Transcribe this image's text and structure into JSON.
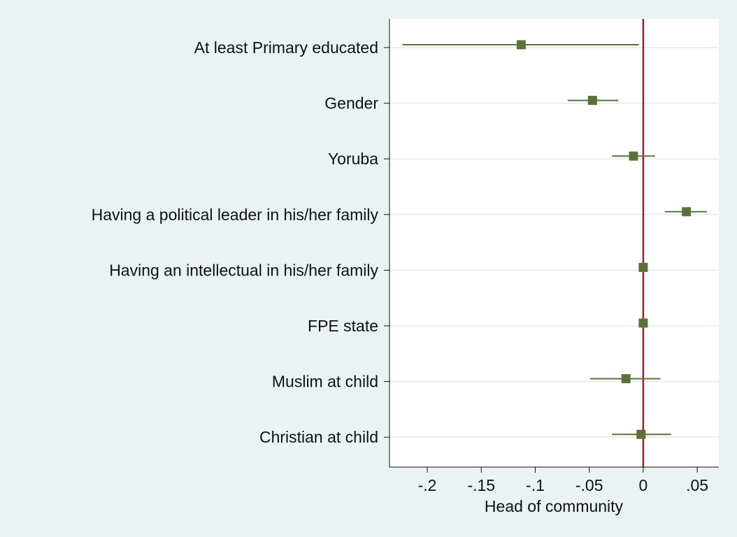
{
  "chart_data": {
    "type": "scatter",
    "subtype": "coefficient-plot",
    "title": "",
    "xlabel": "Head of community",
    "ylabel": "",
    "xlim": [
      -0.235,
      0.07
    ],
    "xticks": [
      -0.2,
      -0.15,
      -0.1,
      -0.05,
      0,
      0.05
    ],
    "xtick_labels": [
      "-.2",
      "-.15",
      "-.1",
      "-.05",
      "0",
      ".05"
    ],
    "reference_line": 0,
    "grid": "horizontal",
    "colors": {
      "background": "#eaf2f3",
      "plot_background": "#ffffff",
      "marker": "#5a7238",
      "ci_line": "#5a7238",
      "reference_line": "#9b1c31",
      "grid": "#e6eef0"
    },
    "items": [
      {
        "label": "At least Primary educated",
        "estimate": -0.113,
        "ci_low": -0.223,
        "ci_high": -0.004
      },
      {
        "label": "Gender",
        "estimate": -0.047,
        "ci_low": -0.07,
        "ci_high": -0.023
      },
      {
        "label": "Yoruba",
        "estimate": -0.009,
        "ci_low": -0.029,
        "ci_high": 0.011
      },
      {
        "label": "Having a political leader in his/her family",
        "estimate": 0.04,
        "ci_low": 0.02,
        "ci_high": 0.059
      },
      {
        "label": "Having an intellectual in his/her family",
        "estimate": 0.0,
        "ci_low": 0.0,
        "ci_high": 0.0
      },
      {
        "label": "FPE state",
        "estimate": 0.0,
        "ci_low": 0.0,
        "ci_high": 0.0
      },
      {
        "label": "Muslim at child",
        "estimate": -0.016,
        "ci_low": -0.049,
        "ci_high": 0.016
      },
      {
        "label": "Christian at child",
        "estimate": -0.002,
        "ci_low": -0.029,
        "ci_high": 0.026
      }
    ]
  }
}
